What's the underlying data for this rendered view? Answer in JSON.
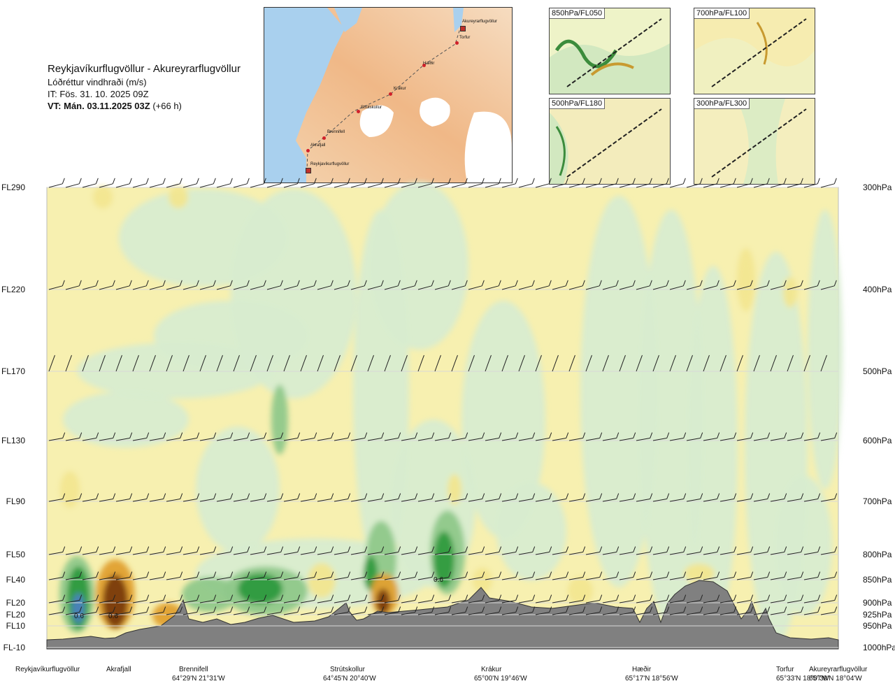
{
  "header": {
    "title": "Reykjavíkurflugvöllur - Akureyrarflugvöllur",
    "subtitle": "Lóðréttur vindhraði (m/s)",
    "issue_time": "IT: Fös. 31. 10. 2025 09Z",
    "valid_time_bold": "VT: Mán. 03.11.2025 03Z",
    "valid_time_offset": "(+66 h)"
  },
  "route_map": {
    "points": [
      {
        "label": "Akureyrarflugvöllur"
      },
      {
        "label": "Torfur"
      },
      {
        "label": "Hæðir"
      },
      {
        "label": "Krákur"
      },
      {
        "label": "Strútskollur"
      },
      {
        "label": "Brennifell"
      },
      {
        "label": "Akrafjall"
      },
      {
        "label": "Reykjavíkurflugvöllur"
      }
    ]
  },
  "insets": [
    {
      "label": "850hPa/FL050"
    },
    {
      "label": "700hPa/FL100"
    },
    {
      "label": "500hPa/FL180"
    },
    {
      "label": "300hPa/FL300"
    }
  ],
  "chart_data": {
    "type": "heatmap",
    "title": "Reykjavíkurflugvöllur - Akureyrarflugvöllur",
    "variable": "Lóðréttur vindhraði (m/s)",
    "levels": [
      {
        "fl": "FL290",
        "hpa": "300hPa"
      },
      {
        "fl": "FL220",
        "hpa": "400hPa"
      },
      {
        "fl": "FL170",
        "hpa": "500hPa"
      },
      {
        "fl": "FL130",
        "hpa": "600hPa"
      },
      {
        "fl": "FL90",
        "hpa": "700hPa"
      },
      {
        "fl": "FL50",
        "hpa": "800hPa"
      },
      {
        "fl": "FL40",
        "hpa": "850hPa"
      },
      {
        "fl": "FL20",
        "hpa": "900hPa"
      },
      {
        "fl": "FL20",
        "hpa": "925hPa"
      },
      {
        "fl": "FL10",
        "hpa": "950hPa"
      },
      {
        "fl": "FL-10",
        "hpa": "1000hPa"
      }
    ],
    "waypoints": [
      {
        "name": "Reykjavíkurflugvöllur",
        "coord": ""
      },
      {
        "name": "Akrafjall",
        "coord": ""
      },
      {
        "name": "Brennifell",
        "coord": "64°29'N 21°31'W"
      },
      {
        "name": "Strútskollur",
        "coord": "64°45'N 20°40'W"
      },
      {
        "name": "Krákur",
        "coord": "65°00'N 19°46'W"
      },
      {
        "name": "Hæðir",
        "coord": "65°17'N 18°56'W"
      },
      {
        "name": "Torfur",
        "coord": "65°33'N 18°07'W"
      },
      {
        "name": "Akureyrarflugvöllur",
        "coord": "65°39'N 18°04'W"
      }
    ],
    "annotations": [
      "0.6",
      "0.6",
      "0.6"
    ],
    "colors": {
      "strong_down": "#7a3a10",
      "moderate_down": "#e0a030",
      "weak_down": "#f2e690",
      "neutral": "#f7f0b0",
      "weak_up": "#d8ecd0",
      "moderate_up": "#8fc88a",
      "strong_up": "#2e9a3e",
      "very_strong_up": "#4a7fbf",
      "terrain": "#808080"
    }
  }
}
